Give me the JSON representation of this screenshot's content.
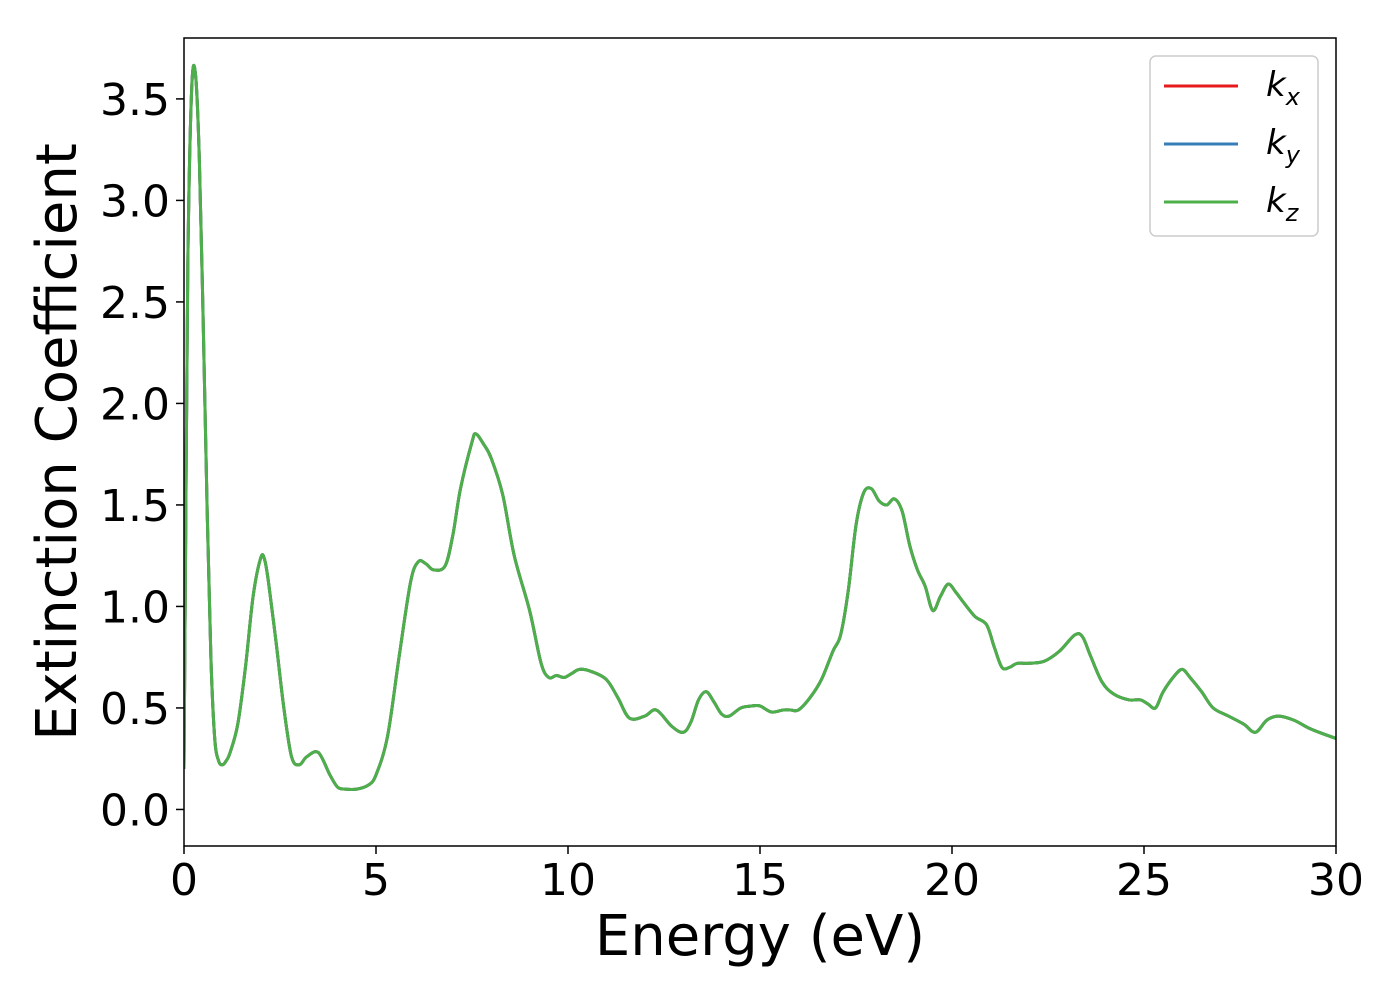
{
  "chart_data": {
    "type": "line",
    "title": "",
    "xlabel": "Energy (eV)",
    "ylabel": "Extinction Coefficient",
    "xlim": [
      0,
      30
    ],
    "ylim": [
      -0.18,
      3.8
    ],
    "xticks": [
      "0",
      "5",
      "10",
      "15",
      "20",
      "25",
      "30"
    ],
    "yticks": [
      "0.0",
      "0.5",
      "1.0",
      "1.5",
      "2.0",
      "2.5",
      "3.0",
      "3.5"
    ],
    "grid": false,
    "legend_position": "top-right",
    "series": [
      {
        "name": "k_x",
        "label_main": "k",
        "label_sub": "x",
        "color": "#e41a1c",
        "x": [
          0,
          0.05,
          0.1,
          0.2,
          0.3,
          0.4,
          0.5,
          0.6,
          0.7,
          0.8,
          0.9,
          1.0,
          1.1,
          1.2,
          1.4,
          1.6,
          1.8,
          2.0,
          2.1,
          2.2,
          2.4,
          2.6,
          2.8,
          3.0,
          3.2,
          3.5,
          3.8,
          4.0,
          4.2,
          4.5,
          4.8,
          5.0,
          5.3,
          5.6,
          5.9,
          6.1,
          6.3,
          6.5,
          6.8,
          7.0,
          7.2,
          7.5,
          7.6,
          7.8,
          8.0,
          8.3,
          8.6,
          9.0,
          9.3,
          9.5,
          9.7,
          9.9,
          10.1,
          10.3,
          10.6,
          11.0,
          11.3,
          11.6,
          12.0,
          12.3,
          12.7,
          13.0,
          13.2,
          13.4,
          13.6,
          13.8,
          14.0,
          14.2,
          14.5,
          14.8,
          15.0,
          15.3,
          15.6,
          15.8,
          16.0,
          16.3,
          16.6,
          16.9,
          17.1,
          17.3,
          17.5,
          17.7,
          17.9,
          18.1,
          18.3,
          18.5,
          18.7,
          18.9,
          19.1,
          19.3,
          19.5,
          19.7,
          19.9,
          20.1,
          20.3,
          20.6,
          20.9,
          21.1,
          21.3,
          21.5,
          21.7,
          22.0,
          22.4,
          22.8,
          23.2,
          23.4,
          23.6,
          23.9,
          24.2,
          24.6,
          24.9,
          25.1,
          25.3,
          25.5,
          25.8,
          26.0,
          26.2,
          26.5,
          26.8,
          27.2,
          27.6,
          27.9,
          28.2,
          28.5,
          28.9,
          29.3,
          29.7,
          30.0
        ],
        "y": [
          0.2,
          1.5,
          2.7,
          3.55,
          3.62,
          3.2,
          2.4,
          1.5,
          0.75,
          0.35,
          0.24,
          0.22,
          0.24,
          0.28,
          0.42,
          0.7,
          1.05,
          1.24,
          1.23,
          1.12,
          0.82,
          0.5,
          0.26,
          0.22,
          0.26,
          0.28,
          0.17,
          0.11,
          0.1,
          0.1,
          0.12,
          0.17,
          0.36,
          0.75,
          1.12,
          1.22,
          1.21,
          1.18,
          1.2,
          1.35,
          1.58,
          1.81,
          1.85,
          1.8,
          1.73,
          1.55,
          1.25,
          0.98,
          0.72,
          0.65,
          0.66,
          0.65,
          0.67,
          0.69,
          0.68,
          0.64,
          0.55,
          0.45,
          0.46,
          0.49,
          0.41,
          0.38,
          0.43,
          0.54,
          0.58,
          0.53,
          0.47,
          0.46,
          0.5,
          0.51,
          0.51,
          0.48,
          0.49,
          0.49,
          0.49,
          0.55,
          0.64,
          0.78,
          0.86,
          1.08,
          1.4,
          1.56,
          1.58,
          1.52,
          1.5,
          1.53,
          1.47,
          1.3,
          1.18,
          1.1,
          0.98,
          1.05,
          1.11,
          1.07,
          1.02,
          0.95,
          0.91,
          0.8,
          0.7,
          0.7,
          0.72,
          0.72,
          0.73,
          0.78,
          0.86,
          0.85,
          0.76,
          0.63,
          0.57,
          0.54,
          0.54,
          0.52,
          0.5,
          0.58,
          0.66,
          0.69,
          0.65,
          0.58,
          0.5,
          0.46,
          0.42,
          0.38,
          0.44,
          0.46,
          0.44,
          0.4,
          0.37,
          0.35
        ]
      },
      {
        "name": "k_y",
        "label_main": "k",
        "label_sub": "y",
        "color": "#377eb8",
        "x": [
          0,
          0.05,
          0.1,
          0.2,
          0.3,
          0.4,
          0.5,
          0.6,
          0.7,
          0.8,
          0.9,
          1.0,
          1.1,
          1.2,
          1.4,
          1.6,
          1.8,
          2.0,
          2.1,
          2.2,
          2.4,
          2.6,
          2.8,
          3.0,
          3.2,
          3.5,
          3.8,
          4.0,
          4.2,
          4.5,
          4.8,
          5.0,
          5.3,
          5.6,
          5.9,
          6.1,
          6.3,
          6.5,
          6.8,
          7.0,
          7.2,
          7.5,
          7.6,
          7.8,
          8.0,
          8.3,
          8.6,
          9.0,
          9.3,
          9.5,
          9.7,
          9.9,
          10.1,
          10.3,
          10.6,
          11.0,
          11.3,
          11.6,
          12.0,
          12.3,
          12.7,
          13.0,
          13.2,
          13.4,
          13.6,
          13.8,
          14.0,
          14.2,
          14.5,
          14.8,
          15.0,
          15.3,
          15.6,
          15.8,
          16.0,
          16.3,
          16.6,
          16.9,
          17.1,
          17.3,
          17.5,
          17.7,
          17.9,
          18.1,
          18.3,
          18.5,
          18.7,
          18.9,
          19.1,
          19.3,
          19.5,
          19.7,
          19.9,
          20.1,
          20.3,
          20.6,
          20.9,
          21.1,
          21.3,
          21.5,
          21.7,
          22.0,
          22.4,
          22.8,
          23.2,
          23.4,
          23.6,
          23.9,
          24.2,
          24.6,
          24.9,
          25.1,
          25.3,
          25.5,
          25.8,
          26.0,
          26.2,
          26.5,
          26.8,
          27.2,
          27.6,
          27.9,
          28.2,
          28.5,
          28.9,
          29.3,
          29.7,
          30.0
        ],
        "y": [
          0.2,
          1.5,
          2.7,
          3.55,
          3.62,
          3.2,
          2.4,
          1.5,
          0.75,
          0.35,
          0.24,
          0.22,
          0.24,
          0.28,
          0.42,
          0.7,
          1.05,
          1.24,
          1.23,
          1.12,
          0.82,
          0.5,
          0.26,
          0.22,
          0.26,
          0.28,
          0.17,
          0.11,
          0.1,
          0.1,
          0.12,
          0.17,
          0.36,
          0.75,
          1.12,
          1.22,
          1.21,
          1.18,
          1.2,
          1.35,
          1.58,
          1.81,
          1.85,
          1.8,
          1.73,
          1.55,
          1.25,
          0.98,
          0.72,
          0.65,
          0.66,
          0.65,
          0.67,
          0.69,
          0.68,
          0.64,
          0.55,
          0.45,
          0.46,
          0.49,
          0.41,
          0.38,
          0.43,
          0.54,
          0.58,
          0.53,
          0.47,
          0.46,
          0.5,
          0.51,
          0.51,
          0.48,
          0.49,
          0.49,
          0.49,
          0.55,
          0.64,
          0.78,
          0.86,
          1.08,
          1.4,
          1.56,
          1.58,
          1.52,
          1.5,
          1.53,
          1.47,
          1.3,
          1.18,
          1.1,
          0.98,
          1.05,
          1.11,
          1.07,
          1.02,
          0.95,
          0.91,
          0.8,
          0.7,
          0.7,
          0.72,
          0.72,
          0.73,
          0.78,
          0.86,
          0.85,
          0.76,
          0.63,
          0.57,
          0.54,
          0.54,
          0.52,
          0.5,
          0.58,
          0.66,
          0.69,
          0.65,
          0.58,
          0.5,
          0.46,
          0.42,
          0.38,
          0.44,
          0.46,
          0.44,
          0.4,
          0.37,
          0.35
        ]
      },
      {
        "name": "k_z",
        "label_main": "k",
        "label_sub": "z",
        "color": "#4daf4a",
        "x": [
          0,
          0.05,
          0.1,
          0.2,
          0.3,
          0.4,
          0.5,
          0.6,
          0.7,
          0.8,
          0.9,
          1.0,
          1.1,
          1.2,
          1.4,
          1.6,
          1.8,
          2.0,
          2.1,
          2.2,
          2.4,
          2.6,
          2.8,
          3.0,
          3.2,
          3.5,
          3.8,
          4.0,
          4.2,
          4.5,
          4.8,
          5.0,
          5.3,
          5.6,
          5.9,
          6.1,
          6.3,
          6.5,
          6.8,
          7.0,
          7.2,
          7.5,
          7.6,
          7.8,
          8.0,
          8.3,
          8.6,
          9.0,
          9.3,
          9.5,
          9.7,
          9.9,
          10.1,
          10.3,
          10.6,
          11.0,
          11.3,
          11.6,
          12.0,
          12.3,
          12.7,
          13.0,
          13.2,
          13.4,
          13.6,
          13.8,
          14.0,
          14.2,
          14.5,
          14.8,
          15.0,
          15.3,
          15.6,
          15.8,
          16.0,
          16.3,
          16.6,
          16.9,
          17.1,
          17.3,
          17.5,
          17.7,
          17.9,
          18.1,
          18.3,
          18.5,
          18.7,
          18.9,
          19.1,
          19.3,
          19.5,
          19.7,
          19.9,
          20.1,
          20.3,
          20.6,
          20.9,
          21.1,
          21.3,
          21.5,
          21.7,
          22.0,
          22.4,
          22.8,
          23.2,
          23.4,
          23.6,
          23.9,
          24.2,
          24.6,
          24.9,
          25.1,
          25.3,
          25.5,
          25.8,
          26.0,
          26.2,
          26.5,
          26.8,
          27.2,
          27.6,
          27.9,
          28.2,
          28.5,
          28.9,
          29.3,
          29.7,
          30.0
        ],
        "y": [
          0.2,
          1.5,
          2.7,
          3.55,
          3.62,
          3.2,
          2.4,
          1.5,
          0.75,
          0.35,
          0.24,
          0.22,
          0.24,
          0.28,
          0.42,
          0.7,
          1.05,
          1.24,
          1.23,
          1.12,
          0.82,
          0.5,
          0.26,
          0.22,
          0.26,
          0.28,
          0.17,
          0.11,
          0.1,
          0.1,
          0.12,
          0.17,
          0.36,
          0.75,
          1.12,
          1.22,
          1.21,
          1.18,
          1.2,
          1.35,
          1.58,
          1.81,
          1.85,
          1.8,
          1.73,
          1.55,
          1.25,
          0.98,
          0.72,
          0.65,
          0.66,
          0.65,
          0.67,
          0.69,
          0.68,
          0.64,
          0.55,
          0.45,
          0.46,
          0.49,
          0.41,
          0.38,
          0.43,
          0.54,
          0.58,
          0.53,
          0.47,
          0.46,
          0.5,
          0.51,
          0.51,
          0.48,
          0.49,
          0.49,
          0.49,
          0.55,
          0.64,
          0.78,
          0.86,
          1.08,
          1.4,
          1.56,
          1.58,
          1.52,
          1.5,
          1.53,
          1.47,
          1.3,
          1.18,
          1.1,
          0.98,
          1.05,
          1.11,
          1.07,
          1.02,
          0.95,
          0.91,
          0.8,
          0.7,
          0.7,
          0.72,
          0.72,
          0.73,
          0.78,
          0.86,
          0.85,
          0.76,
          0.63,
          0.57,
          0.54,
          0.54,
          0.52,
          0.5,
          0.58,
          0.66,
          0.69,
          0.65,
          0.58,
          0.5,
          0.46,
          0.42,
          0.38,
          0.44,
          0.46,
          0.44,
          0.4,
          0.37,
          0.35
        ]
      }
    ]
  }
}
